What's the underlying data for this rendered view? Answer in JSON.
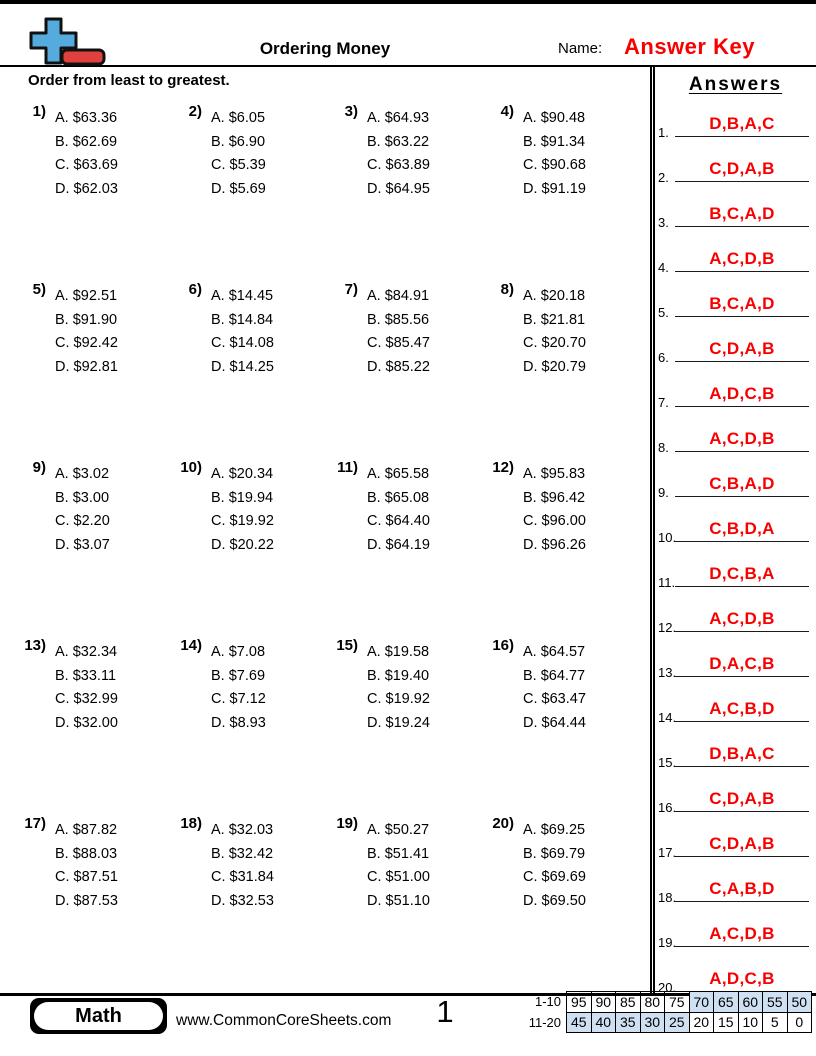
{
  "header": {
    "title": "Ordering Money",
    "name_label": "Name:",
    "name_value": "Answer Key"
  },
  "instruction": "Order from least to greatest.",
  "problems": [
    {
      "num": "1)",
      "options": [
        "A. $63.36",
        "B. $62.69",
        "C. $63.69",
        "D. $62.03"
      ]
    },
    {
      "num": "2)",
      "options": [
        "A. $6.05",
        "B. $6.90",
        "C. $5.39",
        "D. $5.69"
      ]
    },
    {
      "num": "3)",
      "options": [
        "A. $64.93",
        "B. $63.22",
        "C. $63.89",
        "D. $64.95"
      ]
    },
    {
      "num": "4)",
      "options": [
        "A. $90.48",
        "B. $91.34",
        "C. $90.68",
        "D. $91.19"
      ]
    },
    {
      "num": "5)",
      "options": [
        "A. $92.51",
        "B. $91.90",
        "C. $92.42",
        "D. $92.81"
      ]
    },
    {
      "num": "6)",
      "options": [
        "A. $14.45",
        "B. $14.84",
        "C. $14.08",
        "D. $14.25"
      ]
    },
    {
      "num": "7)",
      "options": [
        "A. $84.91",
        "B. $85.56",
        "C. $85.47",
        "D. $85.22"
      ]
    },
    {
      "num": "8)",
      "options": [
        "A. $20.18",
        "B. $21.81",
        "C. $20.70",
        "D. $20.79"
      ]
    },
    {
      "num": "9)",
      "options": [
        "A. $3.02",
        "B. $3.00",
        "C. $2.20",
        "D. $3.07"
      ]
    },
    {
      "num": "10)",
      "options": [
        "A. $20.34",
        "B. $19.94",
        "C. $19.92",
        "D. $20.22"
      ]
    },
    {
      "num": "11)",
      "options": [
        "A. $65.58",
        "B. $65.08",
        "C. $64.40",
        "D. $64.19"
      ]
    },
    {
      "num": "12)",
      "options": [
        "A. $95.83",
        "B. $96.42",
        "C. $96.00",
        "D. $96.26"
      ]
    },
    {
      "num": "13)",
      "options": [
        "A. $32.34",
        "B. $33.11",
        "C. $32.99",
        "D. $32.00"
      ]
    },
    {
      "num": "14)",
      "options": [
        "A. $7.08",
        "B. $7.69",
        "C. $7.12",
        "D. $8.93"
      ]
    },
    {
      "num": "15)",
      "options": [
        "A. $19.58",
        "B. $19.40",
        "C. $19.92",
        "D. $19.24"
      ]
    },
    {
      "num": "16)",
      "options": [
        "A. $64.57",
        "B. $64.77",
        "C. $63.47",
        "D. $64.44"
      ]
    },
    {
      "num": "17)",
      "options": [
        "A. $87.82",
        "B. $88.03",
        "C. $87.51",
        "D. $87.53"
      ]
    },
    {
      "num": "18)",
      "options": [
        "A. $32.03",
        "B. $32.42",
        "C. $31.84",
        "D. $32.53"
      ]
    },
    {
      "num": "19)",
      "options": [
        "A. $50.27",
        "B. $51.41",
        "C. $51.00",
        "D. $51.10"
      ]
    },
    {
      "num": "20)",
      "options": [
        "A. $69.25",
        "B. $69.79",
        "C. $69.69",
        "D. $69.50"
      ]
    }
  ],
  "answers_panel": {
    "heading": "Answers",
    "items": [
      {
        "num": "1.",
        "answer": "D,B,A,C"
      },
      {
        "num": "2.",
        "answer": "C,D,A,B"
      },
      {
        "num": "3.",
        "answer": "B,C,A,D"
      },
      {
        "num": "4.",
        "answer": "A,C,D,B"
      },
      {
        "num": "5.",
        "answer": "B,C,A,D"
      },
      {
        "num": "6.",
        "answer": "C,D,A,B"
      },
      {
        "num": "7.",
        "answer": "A,D,C,B"
      },
      {
        "num": "8.",
        "answer": "A,C,D,B"
      },
      {
        "num": "9.",
        "answer": "C,B,A,D"
      },
      {
        "num": "10.",
        "answer": "C,B,D,A"
      },
      {
        "num": "11.",
        "answer": "D,C,B,A"
      },
      {
        "num": "12.",
        "answer": "A,C,D,B"
      },
      {
        "num": "13.",
        "answer": "D,A,C,B"
      },
      {
        "num": "14.",
        "answer": "A,C,B,D"
      },
      {
        "num": "15.",
        "answer": "D,B,A,C"
      },
      {
        "num": "16.",
        "answer": "C,D,A,B"
      },
      {
        "num": "17.",
        "answer": "C,D,A,B"
      },
      {
        "num": "18.",
        "answer": "C,A,B,D"
      },
      {
        "num": "19.",
        "answer": "A,C,D,B"
      },
      {
        "num": "20.",
        "answer": "A,D,C,B"
      }
    ]
  },
  "footer": {
    "badge": "Math",
    "website": "www.CommonCoreSheets.com",
    "page_number": "1",
    "grading_table": {
      "rows": [
        {
          "label": "1-10",
          "values": [
            "95",
            "90",
            "85",
            "80",
            "75",
            "70",
            "65",
            "60",
            "55",
            "50"
          ],
          "shaded": [
            false,
            false,
            false,
            false,
            false,
            true,
            true,
            true,
            true,
            true
          ]
        },
        {
          "label": "11-20",
          "values": [
            "45",
            "40",
            "35",
            "30",
            "25",
            "20",
            "15",
            "10",
            "5",
            "0"
          ],
          "shaded": [
            true,
            true,
            true,
            true,
            true,
            false,
            false,
            false,
            false,
            false
          ]
        }
      ]
    }
  },
  "icons": {
    "logo": "plus-minus-logo-icon"
  },
  "colors": {
    "answer_red": "#f80000",
    "shaded_cell": "#cfe0f3",
    "logo_blue": "#55abdd",
    "logo_red": "#e0413e"
  }
}
